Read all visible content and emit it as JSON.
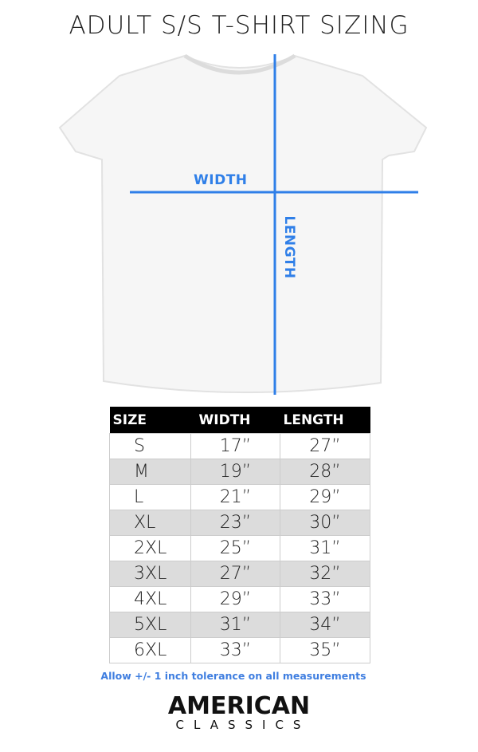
{
  "title": "ADULT S/S T-SHIRT SIZING",
  "diagram": {
    "width_label": "WIDTH",
    "length_label": "LENGTH",
    "line_color": "#2f7fe8"
  },
  "table": {
    "headers": [
      "SIZE",
      "WIDTH",
      "LENGTH"
    ],
    "rows": [
      [
        "S",
        "17”",
        "27”"
      ],
      [
        "M",
        "19”",
        "28”"
      ],
      [
        "L",
        "21”",
        "29”"
      ],
      [
        "XL",
        "23”",
        "30”"
      ],
      [
        "2XL",
        "25”",
        "31”"
      ],
      [
        "3XL",
        "27”",
        "32”"
      ],
      [
        "4XL",
        "29”",
        "33”"
      ],
      [
        "5XL",
        "31”",
        "34”"
      ],
      [
        "6XL",
        "33”",
        "35”"
      ]
    ]
  },
  "note": "Allow +/- 1 inch tolerance on all measurements",
  "brand": {
    "line1": "AMERICAN",
    "line2": "CLASSICS"
  }
}
